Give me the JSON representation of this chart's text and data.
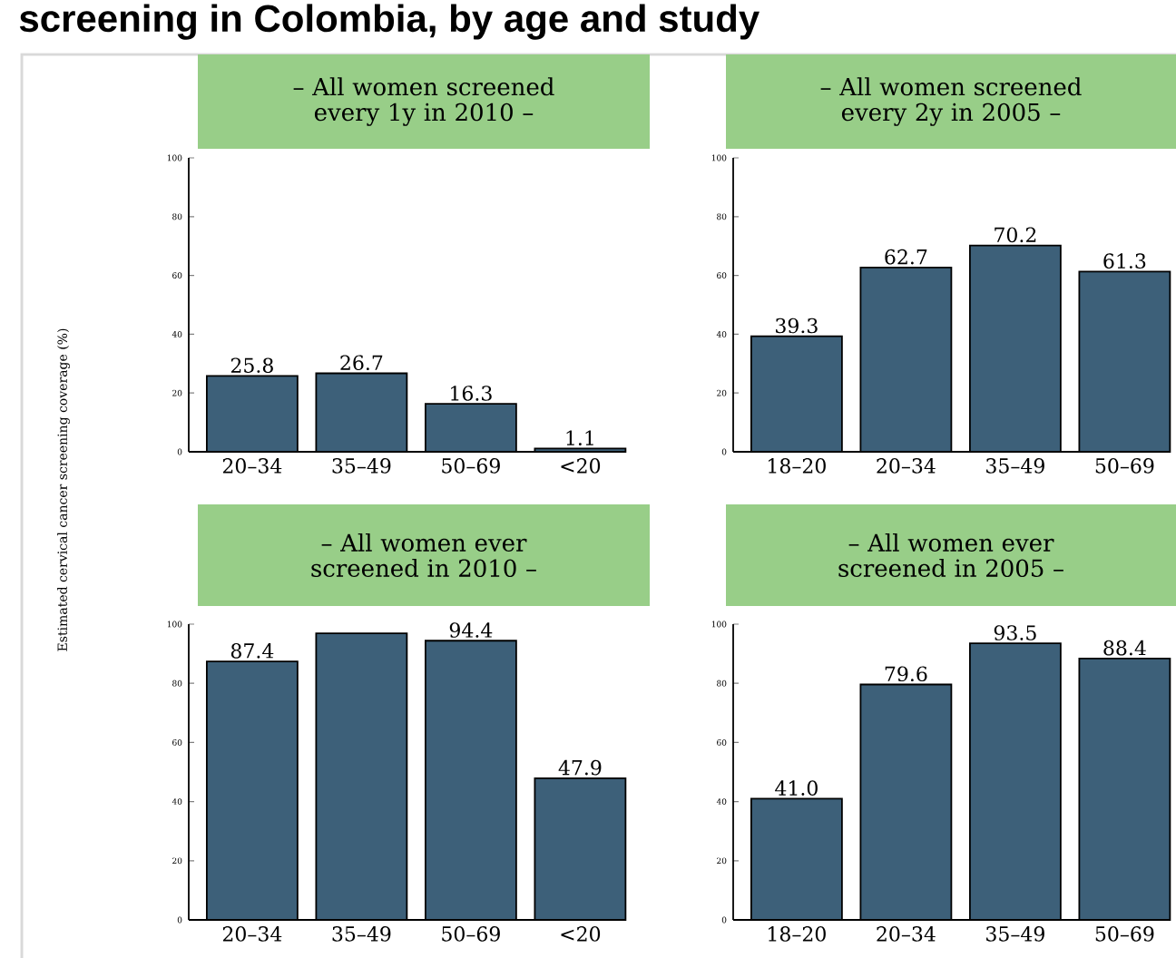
{
  "chart_data": [
    {
      "type": "bar",
      "title": "– All women screened every 1y in 2010 –",
      "annotations": [
        "screening in Colombia, by age and study"
      ],
      "ylabel": "Estimated cervical cancer screening coverage (%)",
      "categories": [
        "20–34",
        "35–49",
        "50–69",
        "<20"
      ],
      "values": [
        25.8,
        26.7,
        16.3,
        1.1
      ],
      "value_labels": [
        "25.8",
        "26.7",
        "16.3",
        "1.1"
      ],
      "color": "#3d6079",
      "ylim": [
        0,
        100
      ],
      "yticks": [
        0,
        20,
        40,
        60,
        80,
        100
      ]
    },
    {
      "type": "bar",
      "title": "– All women screened every 2y in 2005 –",
      "categories": [
        "18–20",
        "20–34",
        "35–49",
        "50–69"
      ],
      "values": [
        39.3,
        62.7,
        70.2,
        61.3
      ],
      "value_labels": [
        "39.3",
        "62.7",
        "70.2",
        "61.3"
      ],
      "color": "#3d6079",
      "ylim": [
        0,
        100
      ],
      "yticks": [
        0,
        20,
        40,
        60,
        80,
        100
      ]
    },
    {
      "type": "bar",
      "title": "– All women ever screened in 2010 –",
      "categories": [
        "20–34",
        "35–49",
        "50–69",
        "<20"
      ],
      "values": [
        87.4,
        96.9,
        94.4,
        47.9
      ],
      "value_labels": [
        "87.4",
        null,
        "94.4",
        "47.9"
      ],
      "color": "#3d6079",
      "ylim": [
        0,
        100
      ],
      "yticks": [
        0,
        20,
        40,
        60,
        80,
        100
      ]
    },
    {
      "type": "bar",
      "title": "– All women ever screened in 2005 –",
      "categories": [
        "18–20",
        "20–34",
        "35–49",
        "50–69"
      ],
      "values": [
        41.0,
        79.6,
        93.5,
        88.4
      ],
      "value_labels": [
        "41.0",
        "79.6",
        "93.5",
        "88.4"
      ],
      "color": "#3d6079",
      "ylim": [
        0,
        100
      ],
      "yticks": [
        0,
        20,
        40,
        60,
        80,
        100
      ]
    }
  ]
}
